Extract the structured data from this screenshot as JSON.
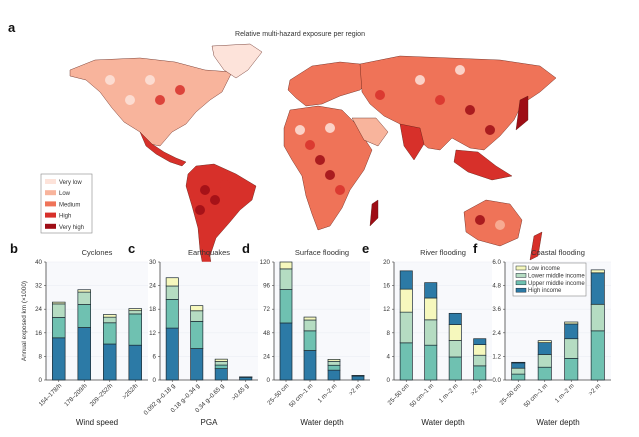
{
  "map": {
    "letter": "a",
    "title": "Relative multi-hazard exposure per region",
    "legend": [
      {
        "label": "Very low",
        "color": "#fde3da"
      },
      {
        "label": "Low",
        "color": "#f8b49c"
      },
      {
        "label": "Medium",
        "color": "#ef7358"
      },
      {
        "label": "High",
        "color": "#d7302a"
      },
      {
        "label": "Very high",
        "color": "#9e0d15"
      }
    ]
  },
  "income_legend": [
    {
      "key": "low",
      "label": "Low income",
      "color": "#f6f8bd"
    },
    {
      "key": "lower_middle",
      "label": "Lower middle income",
      "color": "#b5dcc2"
    },
    {
      "key": "upper_middle",
      "label": "Upper middle income",
      "color": "#6fc1b1"
    },
    {
      "key": "high",
      "label": "High income",
      "color": "#2c7aa6"
    }
  ],
  "shared_ylabel": "Annual exposed km (×1000)",
  "chart_data": [
    {
      "letter": "b",
      "type": "bar",
      "stacked": true,
      "title": "Cyclones",
      "xlabel": "Wind speed",
      "ylabel": "Annual exposed km (×1000)",
      "ylim": [
        0,
        40
      ],
      "yticks": [
        "0",
        "8",
        "16",
        "24",
        "32",
        "40"
      ],
      "ytick_values": [
        0,
        8,
        16,
        24,
        32,
        40
      ],
      "categories": [
        "154–178/h",
        "178–209/h",
        "209–252/h",
        ">252/h"
      ],
      "stack_order": [
        "high",
        "upper_middle",
        "lower_middle",
        "low"
      ],
      "series": [
        {
          "name": "High income",
          "key": "high",
          "values": [
            14.3,
            17.8,
            12.2,
            11.8
          ]
        },
        {
          "name": "Upper middle income",
          "key": "upper_middle",
          "values": [
            6.9,
            7.8,
            7.2,
            10.6
          ]
        },
        {
          "name": "Lower middle income",
          "key": "lower_middle",
          "values": [
            4.6,
            4.2,
            1.9,
            1.1
          ]
        },
        {
          "name": "Low income",
          "key": "low",
          "values": [
            0.6,
            0.8,
            0.9,
            0.7
          ]
        }
      ]
    },
    {
      "letter": "c",
      "type": "bar",
      "stacked": true,
      "title": "Earthquakes",
      "xlabel": "PGA",
      "ylabel": "",
      "ylim": [
        0,
        30
      ],
      "yticks": [
        "0",
        "6",
        "12",
        "18",
        "24",
        "30"
      ],
      "ytick_values": [
        0,
        6,
        12,
        18,
        24,
        30
      ],
      "categories": [
        "0.092 g–0.18 g",
        "0.18 g–0.34 g",
        "0.34 g–0.65 g",
        ">0.65 g"
      ],
      "stack_order": [
        "high",
        "upper_middle",
        "lower_middle",
        "low"
      ],
      "series": [
        {
          "name": "High income",
          "key": "high",
          "values": [
            13.2,
            8.0,
            2.9,
            0.7
          ]
        },
        {
          "name": "Upper middle income",
          "key": "upper_middle",
          "values": [
            7.3,
            6.9,
            0.9,
            0.05
          ]
        },
        {
          "name": "Lower middle income",
          "key": "lower_middle",
          "values": [
            3.4,
            2.7,
            0.9,
            0.03
          ]
        },
        {
          "name": "Low income",
          "key": "low",
          "values": [
            2.1,
            1.3,
            0.6,
            0.02
          ]
        }
      ]
    },
    {
      "letter": "d",
      "type": "bar",
      "stacked": true,
      "title": "Surface flooding",
      "xlabel": "Water depth",
      "ylabel": "",
      "ylim": [
        0,
        120
      ],
      "yticks": [
        "0",
        "24",
        "48",
        "72",
        "96",
        "120"
      ],
      "ytick_values": [
        0,
        24,
        48,
        72,
        96,
        120
      ],
      "categories": [
        "25–50 cm",
        "50 cm–1 m",
        "1 m–2 m",
        ">2 m"
      ],
      "stack_order": [
        "high",
        "upper_middle",
        "lower_middle",
        "low"
      ],
      "series": [
        {
          "name": "High income",
          "key": "high",
          "values": [
            58,
            30,
            10,
            4
          ]
        },
        {
          "name": "Upper middle income",
          "key": "upper_middle",
          "values": [
            34,
            20,
            5,
            0.3
          ]
        },
        {
          "name": "Lower middle income",
          "key": "lower_middle",
          "values": [
            21,
            11,
            4,
            0.2
          ]
        },
        {
          "name": "Low income",
          "key": "low",
          "values": [
            7,
            3,
            2,
            0.1
          ]
        }
      ]
    },
    {
      "letter": "e",
      "type": "bar",
      "stacked": true,
      "title": "River flooding",
      "xlabel": "Water depth",
      "ylabel": "",
      "ylim": [
        0,
        20
      ],
      "yticks": [
        "0",
        "4",
        "8",
        "12",
        "16",
        "20"
      ],
      "ytick_values": [
        0,
        4,
        8,
        12,
        16,
        20
      ],
      "categories": [
        "25–50 cm",
        "50 cm–1 m",
        "1 m–2 m",
        ">2 m"
      ],
      "stack_order": [
        "upper_middle",
        "lower_middle",
        "low",
        "high"
      ],
      "series": [
        {
          "name": "Upper middle income",
          "key": "upper_middle",
          "values": [
            6.3,
            5.9,
            3.9,
            2.4
          ]
        },
        {
          "name": "Lower middle income",
          "key": "lower_middle",
          "values": [
            5.2,
            4.3,
            2.8,
            1.8
          ]
        },
        {
          "name": "Low income",
          "key": "low",
          "values": [
            3.9,
            3.7,
            2.7,
            1.8
          ]
        },
        {
          "name": "High income",
          "key": "high",
          "values": [
            3.1,
            2.6,
            1.9,
            1.0
          ]
        }
      ]
    },
    {
      "letter": "f",
      "type": "bar",
      "stacked": true,
      "title": "Coastal flooding",
      "xlabel": "Water depth",
      "ylabel": "",
      "ylim": [
        0,
        6
      ],
      "yticks": [
        "0.0",
        "1.2",
        "2.4",
        "3.6",
        "4.8",
        "6.0"
      ],
      "ytick_values": [
        0,
        1.2,
        2.4,
        3.6,
        4.8,
        6.0
      ],
      "categories": [
        "25–50 cm",
        "50 cm–1 m",
        "1 m–2 m",
        ">2 m"
      ],
      "stack_order": [
        "upper_middle",
        "lower_middle",
        "high",
        "low"
      ],
      "legend": "top-left",
      "series": [
        {
          "name": "Upper middle income",
          "key": "upper_middle",
          "values": [
            0.3,
            0.65,
            1.1,
            2.5
          ]
        },
        {
          "name": "Lower middle income",
          "key": "lower_middle",
          "values": [
            0.3,
            0.65,
            1.0,
            1.35
          ]
        },
        {
          "name": "High income",
          "key": "high",
          "values": [
            0.27,
            0.6,
            0.75,
            1.6
          ]
        },
        {
          "name": "Low income",
          "key": "low",
          "values": [
            0.03,
            0.1,
            0.1,
            0.15
          ]
        }
      ]
    }
  ]
}
